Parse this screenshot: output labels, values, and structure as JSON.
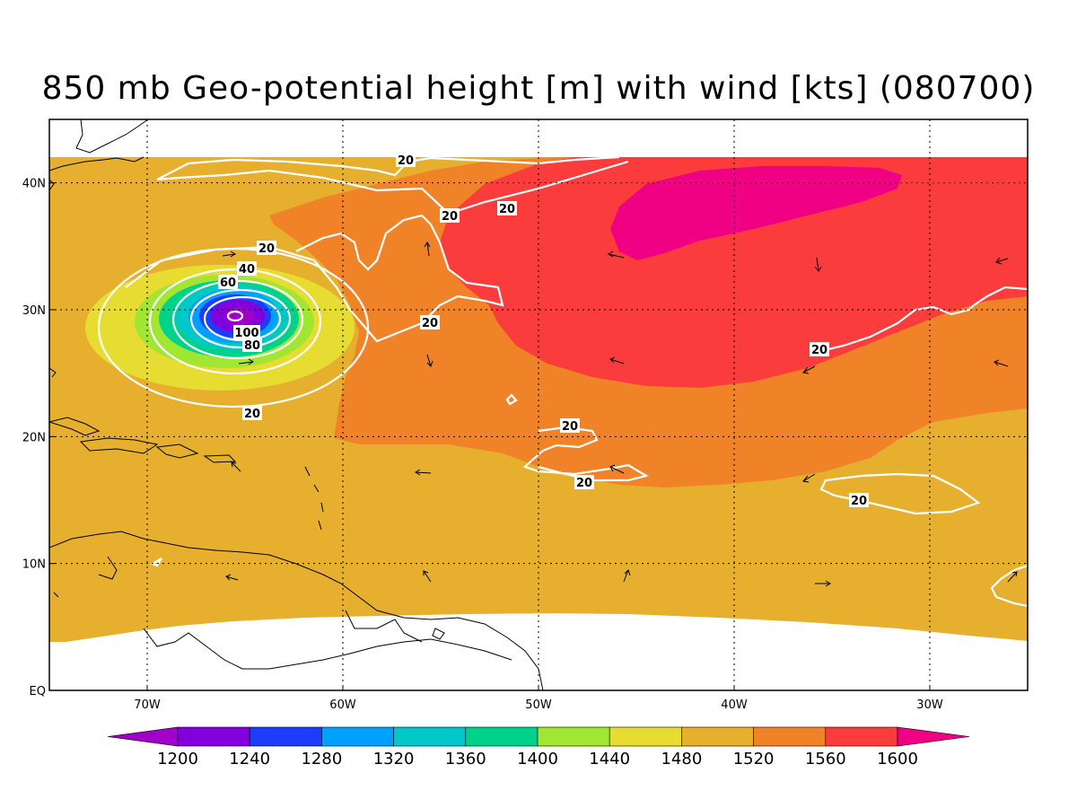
{
  "title": "850 mb Geo-potential height [m] with wind [kts] (080700)",
  "map": {
    "lon_range": [
      -75,
      -25
    ],
    "lat_range": [
      0,
      45
    ],
    "lon_ticks": [
      {
        "value": -70,
        "label": "70W"
      },
      {
        "value": -60,
        "label": "60W"
      },
      {
        "value": -50,
        "label": "50W"
      },
      {
        "value": -40,
        "label": "40W"
      },
      {
        "value": -30,
        "label": "30W"
      }
    ],
    "lat_ticks": [
      {
        "value": 0,
        "label": "EQ"
      },
      {
        "value": 10,
        "label": "10N"
      },
      {
        "value": 20,
        "label": "20N"
      },
      {
        "value": 30,
        "label": "30N"
      },
      {
        "value": 40,
        "label": "40N"
      }
    ],
    "grid": true
  },
  "colorbar": {
    "levels": [
      "1200",
      "1240",
      "1280",
      "1320",
      "1360",
      "1400",
      "1440",
      "1480",
      "1520",
      "1560",
      "1600"
    ],
    "colors": [
      "#a000c8",
      "#8200dc",
      "#1e3cff",
      "#00a0ff",
      "#00c8c8",
      "#00d28c",
      "#a0e632",
      "#e6dc32",
      "#e6af2d",
      "#f08228",
      "#fa3c3c",
      "#f00082"
    ]
  },
  "wind_contour_labels": [
    "20",
    "20",
    "20",
    "20",
    "40",
    "60",
    "80",
    "100",
    "20",
    "20",
    "20",
    "20",
    "20"
  ]
}
